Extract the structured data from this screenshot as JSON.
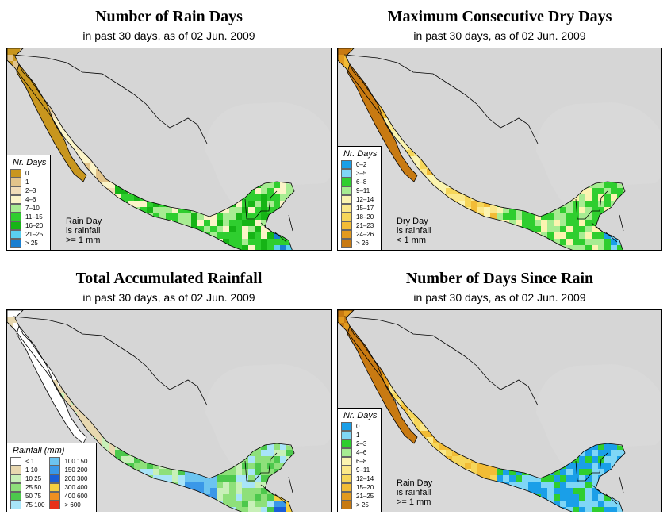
{
  "panels": [
    {
      "title": "Number of Rain Days",
      "subtitle": "in past 30 days, as of  02 Jun. 2009",
      "legend_title": "Nr. Days",
      "legend": [
        {
          "label": "0",
          "color": "#c8961e"
        },
        {
          "label": "1",
          "color": "#e2c48a"
        },
        {
          "label": "2–3",
          "color": "#f1ddb8"
        },
        {
          "label": "4–6",
          "color": "#fbf4c8"
        },
        {
          "label": "7–10",
          "color": "#a7ec92"
        },
        {
          "label": "11–15",
          "color": "#2fce2f"
        },
        {
          "label": "16–20",
          "color": "#16b416"
        },
        {
          "label": "21–25",
          "color": "#5ad0f0"
        },
        {
          "label": "> 25",
          "color": "#1a7fd0"
        }
      ],
      "note": [
        "Rain Day",
        "is rainfall",
        ">= 1 mm"
      ]
    },
    {
      "title": "Maximum Consecutive Dry Days",
      "subtitle": "in past 30 days, as of  02 Jun. 2009",
      "legend_title": "Nr. Days",
      "legend": [
        {
          "label": "0–2",
          "color": "#1a9fe8"
        },
        {
          "label": "3–5",
          "color": "#7fd6f6"
        },
        {
          "label": "6–8",
          "color": "#2fce2f"
        },
        {
          "label": "9–11",
          "color": "#a7ec92"
        },
        {
          "label": "12–14",
          "color": "#fbf4b0"
        },
        {
          "label": "15–17",
          "color": "#fbe88a"
        },
        {
          "label": "18–20",
          "color": "#f6d65a"
        },
        {
          "label": "21–23",
          "color": "#f2bc36"
        },
        {
          "label": "24–26",
          "color": "#e29a1e"
        },
        {
          "label": "> 26",
          "color": "#c87a12"
        }
      ],
      "note": [
        "Dry Day",
        "is rainfall",
        "< 1 mm"
      ]
    },
    {
      "title": "Total Accumulated Rainfall",
      "subtitle": "in past 30 days, as of  02 Jun. 2009",
      "legend_title": "Rainfall (mm)",
      "legend_left": [
        {
          "label": "< 1",
          "color": "#ffffff"
        },
        {
          "label": "1    10",
          "color": "#e8d8b0"
        },
        {
          "label": "10    25",
          "color": "#c8f0b8"
        },
        {
          "label": "25    50",
          "color": "#8ee07a"
        },
        {
          "label": "50    75",
          "color": "#4cc84c"
        },
        {
          "label": "75   100",
          "color": "#a8e4f8"
        }
      ],
      "legend_right": [
        {
          "label": "100   150",
          "color": "#6cc4f0"
        },
        {
          "label": "150   200",
          "color": "#3a98e8"
        },
        {
          "label": "200   300",
          "color": "#1a5ed8"
        },
        {
          "label": "300   400",
          "color": "#f6d040"
        },
        {
          "label": "400   600",
          "color": "#f09020"
        },
        {
          "label": "> 600",
          "color": "#e83018"
        }
      ]
    },
    {
      "title": "Number of Days Since Rain",
      "subtitle": "in past 30 days, as of  02 Jun. 2009",
      "legend_title": "Nr. Days",
      "legend": [
        {
          "label": "0",
          "color": "#1a9fe8"
        },
        {
          "label": "1",
          "color": "#7fd6f6"
        },
        {
          "label": "2–3",
          "color": "#2fce2f"
        },
        {
          "label": "4–6",
          "color": "#a7ec92"
        },
        {
          "label": "6–8",
          "color": "#fbf4b0"
        },
        {
          "label": "9–11",
          "color": "#fbe88a"
        },
        {
          "label": "12–14",
          "color": "#f6d65a"
        },
        {
          "label": "15–20",
          "color": "#f2bc36"
        },
        {
          "label": "21–25",
          "color": "#e29a1e"
        },
        {
          "label": "> 25",
          "color": "#c87a12"
        }
      ],
      "note": [
        "Rain Day",
        "is rainfall",
        ">= 1 mm"
      ]
    }
  ]
}
